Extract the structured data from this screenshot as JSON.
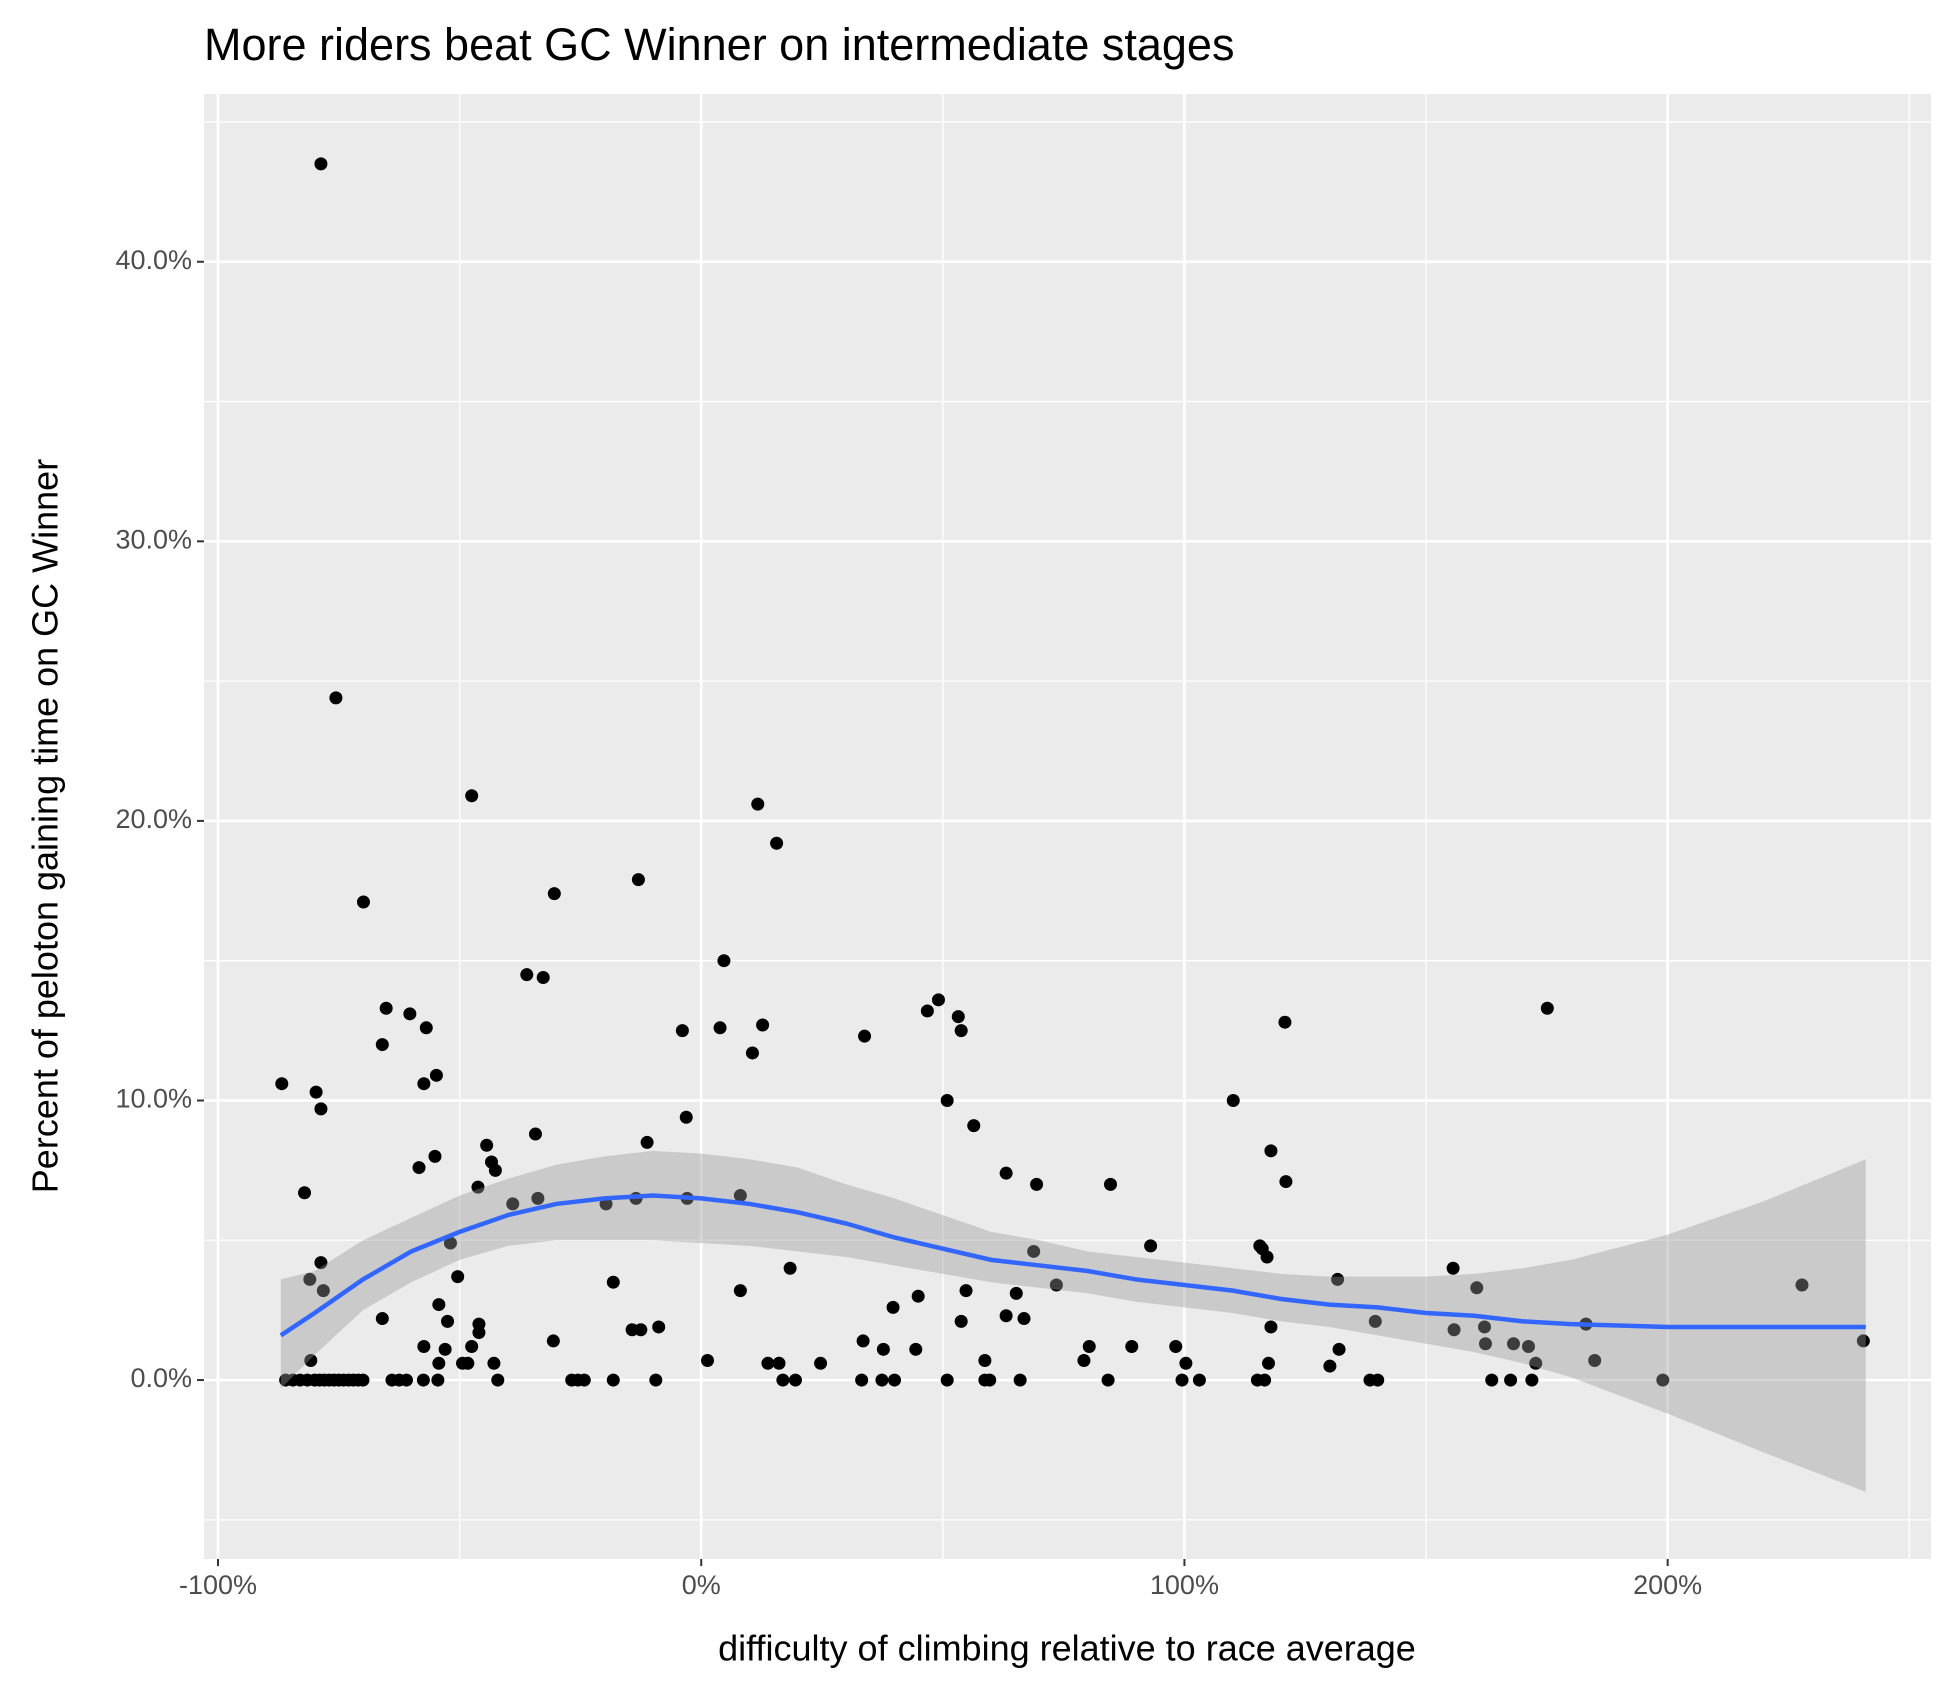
{
  "chart_data": {
    "type": "scatter",
    "title": "More riders beat GC Winner on intermediate stages",
    "x_label": "difficulty of climbing relative to race average",
    "y_label": "Percent of peloton gaining time on GC Winner",
    "color": "#000000",
    "xlim": [
      -102.9,
      254.5
    ],
    "ylim": [
      -6.4,
      46.0
    ],
    "xticks": [
      {
        "value": -100,
        "label": "-100%"
      },
      {
        "value": 0,
        "label": "0%"
      },
      {
        "value": 100,
        "label": "100%"
      },
      {
        "value": 200,
        "label": "200%"
      }
    ],
    "yticks": [
      {
        "value": 0,
        "label": "0.0%"
      },
      {
        "value": 10,
        "label": "10.0%"
      },
      {
        "value": 20,
        "label": "20.0%"
      },
      {
        "value": 30,
        "label": "30.0%"
      },
      {
        "value": 40,
        "label": "40.0%"
      }
    ],
    "x_minor_grid": [
      -50,
      50,
      150,
      250
    ],
    "y_minor_grid": [
      -5,
      5,
      15,
      25,
      35,
      45
    ],
    "grid": true,
    "x": [
      -86.8,
      -78.7,
      -75.6,
      -69.9,
      -65.2,
      -66.0,
      -82.1,
      -79.7,
      -78.7,
      -78.7,
      -81.0,
      -78.2,
      -80.8,
      -66.0,
      -86,
      -84.5,
      -83,
      -81.5,
      -80,
      -79,
      -78,
      -77,
      -76,
      -75,
      -74,
      -73,
      -72,
      -71,
      -70,
      -64,
      -62.5,
      -61,
      -60.3,
      -56.9,
      -54.8,
      -57.4,
      -58.4,
      -55.1,
      -47.5,
      -51.9,
      -50.4,
      -54.3,
      -52.5,
      -57.4,
      -53.0,
      -54.3,
      -57.5,
      -54.5,
      -44.4,
      -46.2,
      -43.4,
      -42.6,
      -46.0,
      -46.0,
      -47.5,
      -49.4,
      -48.3,
      -42.9,
      -42.1,
      -39.0,
      -36.1,
      -32.7,
      -34.3,
      -33.8,
      -30.4,
      -30.6,
      -26.8,
      -25.5,
      -24.2,
      -19.7,
      -18.2,
      -18.2,
      -13.0,
      -13.5,
      -11.2,
      -14.3,
      -12.5,
      -8.8,
      -9.4,
      -3.9,
      -3.1,
      -2.9,
      1.3,
      4.7,
      3.9,
      10.6,
      12.7,
      11.7,
      15.6,
      8.1,
      8.1,
      18.4,
      13.8,
      16.1,
      16.9,
      19.5,
      24.7,
      33.8,
      33.5,
      33.2,
      37.7,
      37.4,
      40.0,
      39.7,
      44.9,
      44.4,
      46.8,
      49.1,
      53.2,
      53.8,
      50.9,
      56.4,
      54.8,
      53.8,
      50.9,
      58.7,
      58.7,
      59.7,
      63.1,
      69.4,
      68.8,
      65.2,
      63.1,
      66.8,
      66.0,
      73.5,
      84.7,
      79.2,
      80.3,
      84.2,
      89.1,
      93.0,
      98.2,
      100.3,
      99.5,
      103.1,
      110.1,
      115.6,
      116.1,
      117.1,
      117.9,
      121.0,
      120.8,
      117.9,
      117.4,
      115.1,
      116.6,
      130.1,
      131.7,
      132.0,
      139.5,
      138.4,
      140.0,
      155.6,
      155.8,
      160.5,
      162.1,
      162.3,
      163.6,
      167.5,
      168.1,
      171.2,
      172.7,
      171.9,
      175.1,
      183.1,
      184.9,
      199.0,
      227.8,
      240.5
    ],
    "values": [
      10.6,
      43.5,
      24.4,
      17.1,
      13.3,
      12.0,
      6.7,
      10.3,
      9.7,
      4.2,
      3.6,
      3.2,
      0.7,
      2.2,
      0,
      0,
      0,
      0,
      0,
      0,
      0,
      0,
      0,
      0,
      0,
      0,
      0,
      0,
      0,
      0,
      0,
      0,
      13.1,
      12.6,
      10.9,
      10.6,
      7.6,
      8.0,
      20.9,
      4.9,
      3.7,
      2.7,
      2.1,
      1.2,
      1.1,
      0.6,
      0,
      0,
      8.4,
      6.9,
      7.8,
      7.5,
      2.0,
      1.7,
      1.2,
      0.6,
      0.6,
      0.6,
      0,
      6.3,
      14.5,
      14.4,
      8.8,
      6.5,
      17.4,
      1.4,
      0,
      0,
      0,
      6.3,
      3.5,
      0,
      17.9,
      6.5,
      8.5,
      1.8,
      1.8,
      1.9,
      0,
      12.5,
      9.4,
      6.5,
      0.7,
      15.0,
      12.6,
      11.7,
      12.7,
      20.6,
      19.2,
      6.6,
      3.2,
      4.0,
      0.6,
      0.6,
      0,
      0,
      0.6,
      12.3,
      1.4,
      0,
      1.1,
      0,
      0,
      2.6,
      3.0,
      1.1,
      13.2,
      13.6,
      13.0,
      12.5,
      10.0,
      9.1,
      3.2,
      2.1,
      0,
      0.7,
      0,
      0,
      7.4,
      7.0,
      4.6,
      3.1,
      2.3,
      2.2,
      0,
      3.4,
      7.0,
      0.7,
      1.2,
      0,
      1.2,
      4.8,
      1.2,
      0.6,
      0,
      0,
      10.0,
      4.8,
      4.7,
      4.4,
      8.2,
      7.1,
      12.8,
      1.9,
      0.6,
      0,
      0,
      0.5,
      3.6,
      1.1,
      2.1,
      0,
      0,
      4.0,
      1.8,
      3.3,
      1.9,
      1.3,
      0,
      0,
      1.3,
      1.2,
      0.6,
      0,
      13.3,
      2.0,
      0.7,
      0,
      3.4,
      1.4
    ],
    "smooth": {
      "color": "#3366FF",
      "band_color": "#999999",
      "x": [
        -87,
        -80,
        -70,
        -60,
        -50,
        -40,
        -30,
        -20,
        -10,
        0,
        10,
        20,
        30,
        40,
        50,
        60,
        70,
        80,
        90,
        100,
        110,
        120,
        130,
        140,
        150,
        160,
        170,
        180,
        200,
        220,
        241
      ],
      "values": [
        1.6,
        2.4,
        3.6,
        4.6,
        5.3,
        5.9,
        6.3,
        6.5,
        6.6,
        6.5,
        6.3,
        6.0,
        5.6,
        5.1,
        4.7,
        4.3,
        4.1,
        3.9,
        3.6,
        3.4,
        3.2,
        2.9,
        2.7,
        2.6,
        2.4,
        2.3,
        2.1,
        2.0,
        1.9,
        1.9,
        1.9
      ],
      "lower": [
        -0.3,
        0.9,
        2.5,
        3.5,
        4.3,
        4.8,
        5.0,
        5.0,
        5.0,
        4.9,
        4.8,
        4.6,
        4.4,
        4.1,
        3.8,
        3.5,
        3.3,
        3.1,
        2.8,
        2.6,
        2.4,
        2.1,
        1.9,
        1.6,
        1.3,
        1.0,
        0.6,
        0.1,
        -1.2,
        -2.6,
        -4.0
      ],
      "upper": [
        3.6,
        3.9,
        5.0,
        5.8,
        6.6,
        7.2,
        7.7,
        8.0,
        8.2,
        8.1,
        7.9,
        7.6,
        7.0,
        6.5,
        5.9,
        5.3,
        5.0,
        4.6,
        4.4,
        4.2,
        4.0,
        3.8,
        3.7,
        3.7,
        3.7,
        3.8,
        4.0,
        4.3,
        5.2,
        6.4,
        7.9
      ]
    }
  }
}
